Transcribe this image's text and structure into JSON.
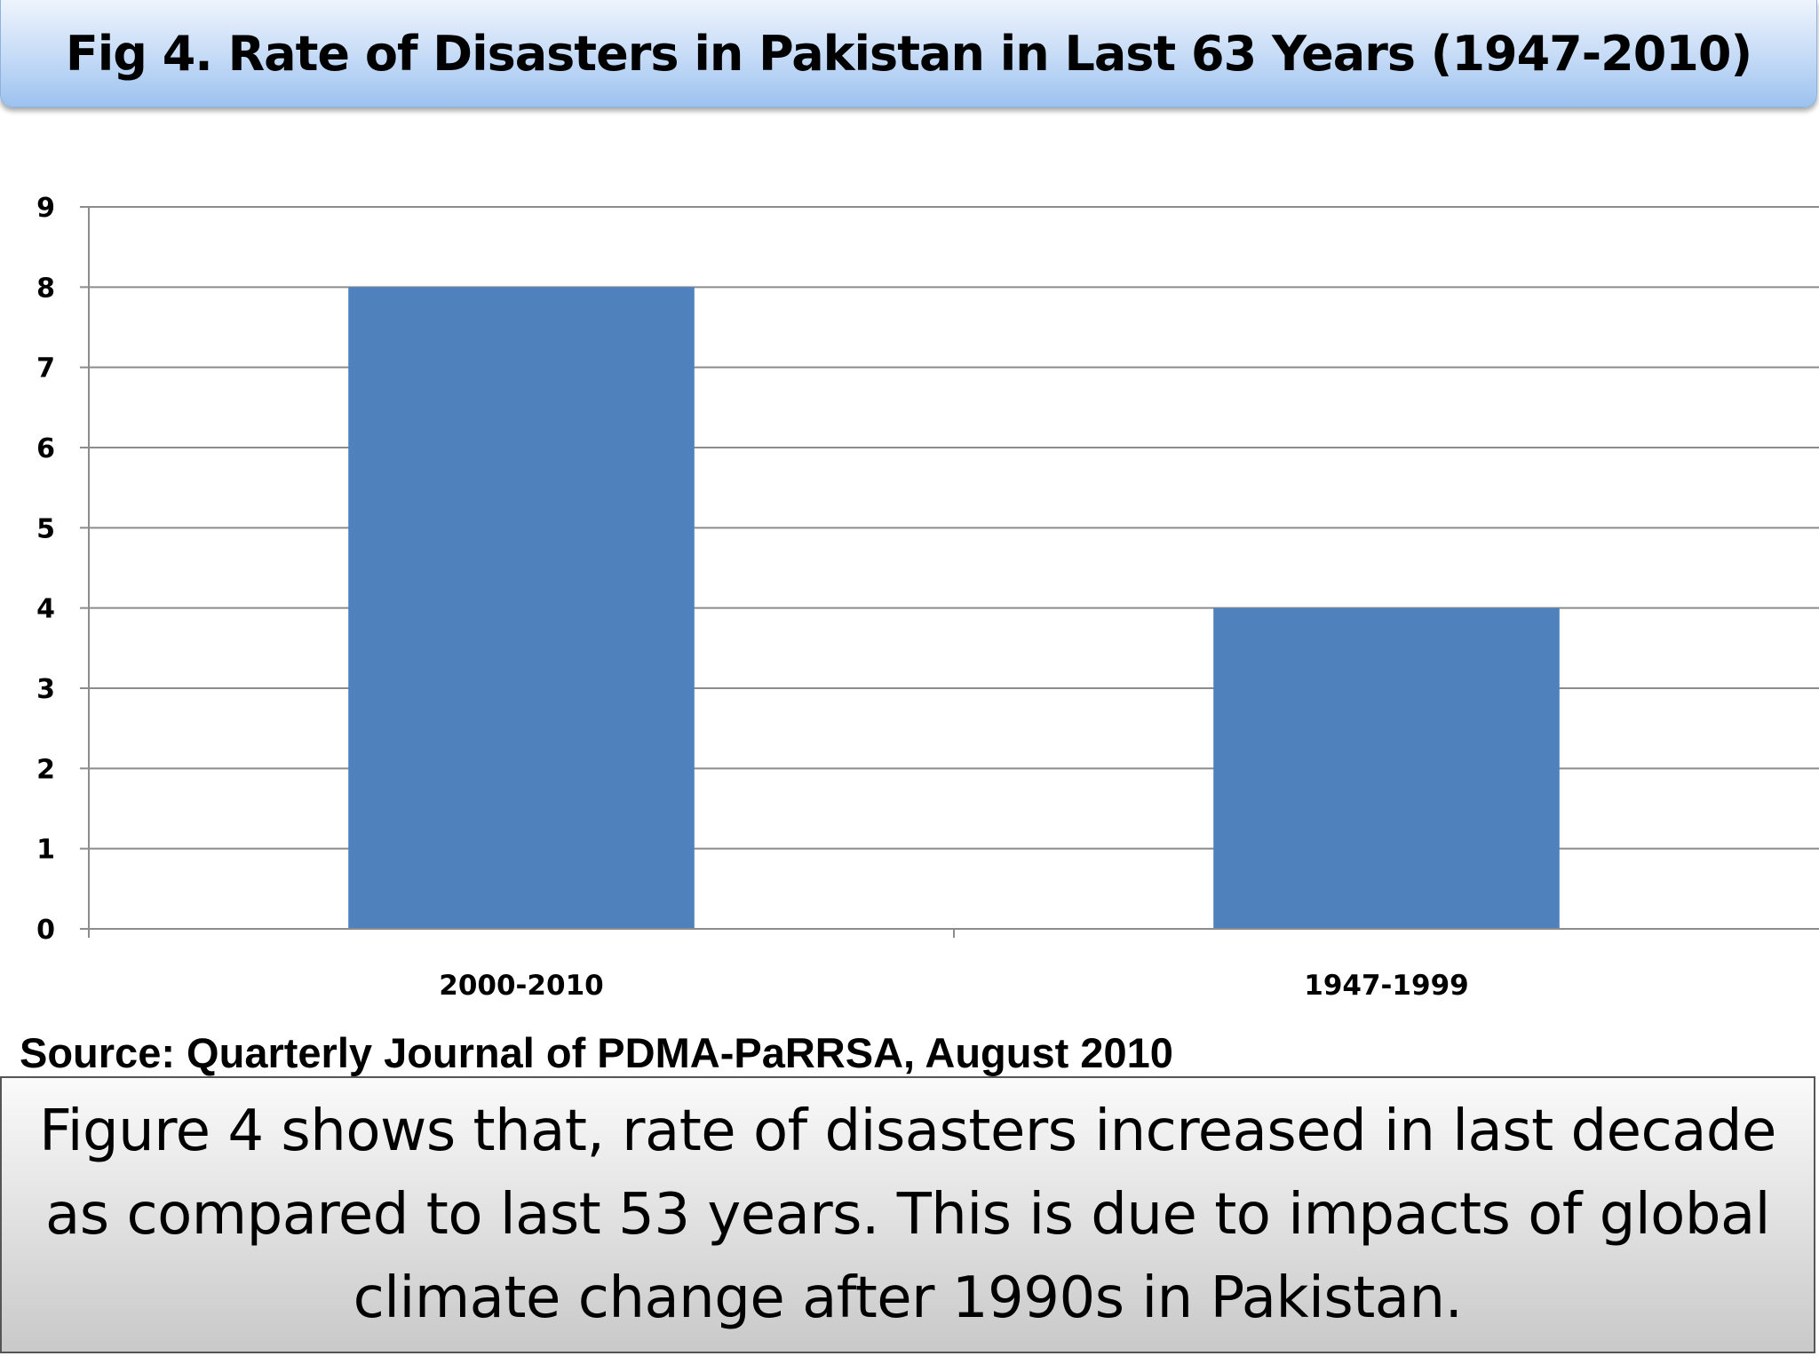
{
  "header": {
    "title": "Fig 4. Rate of Disasters in Pakistan in Last 63 Years (1947-2010)"
  },
  "chart_data": {
    "type": "bar",
    "title": "Fig 4. Rate of Disasters in Pakistan in Last 63 Years (1947-2010)",
    "xlabel": "",
    "ylabel": "",
    "categories": [
      "2000-2010",
      "1947-1999"
    ],
    "values": [
      8,
      4
    ],
    "ylim": [
      0,
      9
    ],
    "yticks": [
      "0",
      "1",
      "2",
      "3",
      "4",
      "5",
      "6",
      "7",
      "8",
      "9"
    ],
    "grid": true,
    "legend": "none",
    "bar_color": "#4f81bd"
  },
  "source": {
    "text": "Source: Quarterly Journal of PDMA-PaRRSA, August 2010"
  },
  "caption": {
    "text": "Figure 4 shows that, rate of disasters increased in last decade as compared to last 53 years. This is due to impacts of global climate change after 1990s in Pakistan."
  }
}
